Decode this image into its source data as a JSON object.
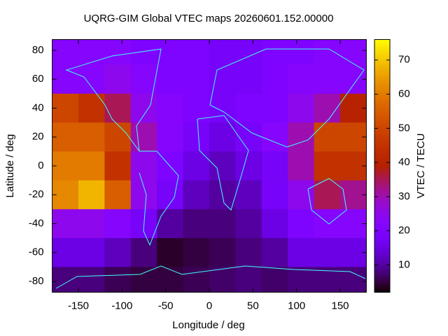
{
  "chart_data": {
    "type": "heatmap",
    "title": "UQRG-GIM Global VTEC maps 20260601.152.00000",
    "x_label": "Longitude / deg",
    "y_label": "Latitude / deg",
    "colorbar_label": "VTEC / TECU",
    "colormap": "gnuplot",
    "x": [
      -165,
      -135,
      -105,
      -75,
      -45,
      -15,
      15,
      45,
      75,
      105,
      135,
      165
    ],
    "y": [
      80,
      60,
      40,
      20,
      0,
      -20,
      -40,
      -60,
      -80
    ],
    "values": [
      [
        22,
        22,
        22,
        20,
        20,
        20,
        18,
        18,
        20,
        20,
        22,
        22
      ],
      [
        22,
        22,
        25,
        22,
        20,
        20,
        18,
        18,
        20,
        22,
        22,
        22
      ],
      [
        50,
        45,
        35,
        25,
        22,
        20,
        18,
        20,
        20,
        25,
        30,
        40
      ],
      [
        55,
        55,
        50,
        30,
        22,
        18,
        15,
        18,
        22,
        30,
        50,
        50
      ],
      [
        60,
        60,
        45,
        25,
        20,
        15,
        12,
        15,
        18,
        30,
        45,
        45
      ],
      [
        62,
        68,
        55,
        25,
        18,
        12,
        10,
        12,
        18,
        25,
        35,
        32
      ],
      [
        25,
        25,
        22,
        18,
        10,
        8,
        8,
        10,
        15,
        20,
        22,
        22
      ],
      [
        15,
        15,
        12,
        8,
        4,
        5,
        6,
        8,
        10,
        15,
        15,
        15
      ],
      [
        8,
        8,
        6,
        5,
        5,
        6,
        7,
        8,
        7,
        8,
        8,
        8
      ]
    ],
    "xlim": [
      -180,
      180
    ],
    "ylim": [
      -87.5,
      87.5
    ],
    "cblim": [
      2,
      76
    ],
    "xticks": [
      -150,
      -100,
      -50,
      0,
      50,
      100,
      150
    ],
    "yticks": [
      -80,
      -60,
      -40,
      -20,
      0,
      20,
      40,
      60,
      80
    ],
    "cbticks": [
      10,
      20,
      30,
      40,
      50,
      60,
      70
    ]
  }
}
